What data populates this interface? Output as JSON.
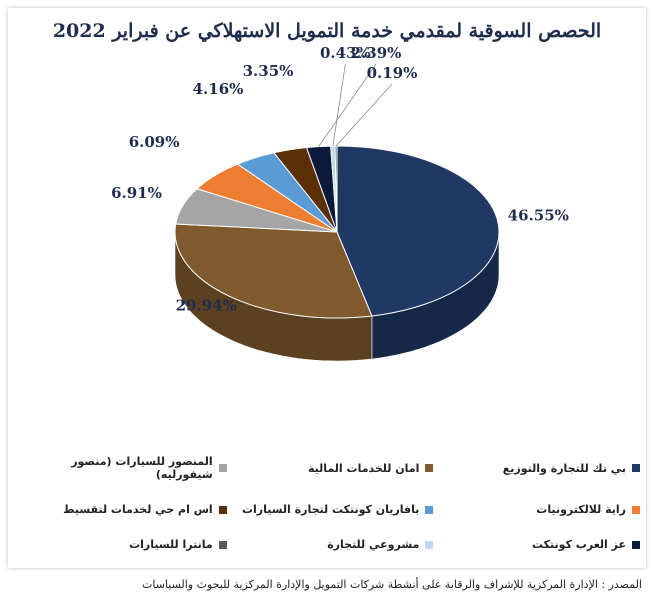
{
  "chart_data": {
    "type": "pie",
    "title": "الحصص السوقية لمقدمي خدمة التمويل الاستهلاكي عن فبراير 2022",
    "categories": [
      "بي تك للتجارة والتوزيع",
      "امان للخدمات المالية",
      "المنصور للسيارات (منصور شيفورليه)",
      "راية للالكترونيات",
      "بافاريان كونتكت لتجارة السيارات",
      "اس ام جي لخدمات لتقسيط",
      "عز العرب كونتكت",
      "مشروعي للتجارة",
      "مانترا للسيارات"
    ],
    "values": [
      46.55,
      29.94,
      6.91,
      6.09,
      4.16,
      3.35,
      2.39,
      0.43,
      0.19
    ],
    "labels": [
      "46.55%",
      "29.94%",
      "6.91%",
      "6.09%",
      "4.16%",
      "3.35%",
      "2.39%",
      "0.43%",
      "0.19%"
    ],
    "colors": [
      "#1f3864",
      "#7f5a2e",
      "#a5a5a5",
      "#ed7d31",
      "#5b9bd5",
      "#5c3007",
      "#0b1a3a",
      "#bdd7ee",
      "#5a5a5a"
    ],
    "legend_position": "bottom"
  },
  "source_note": "المصدر : الإدارة المركزية للإشراف والرقابة على أنشطة شركات التمويل والإدارة المركزية للبحوث والسياسات"
}
